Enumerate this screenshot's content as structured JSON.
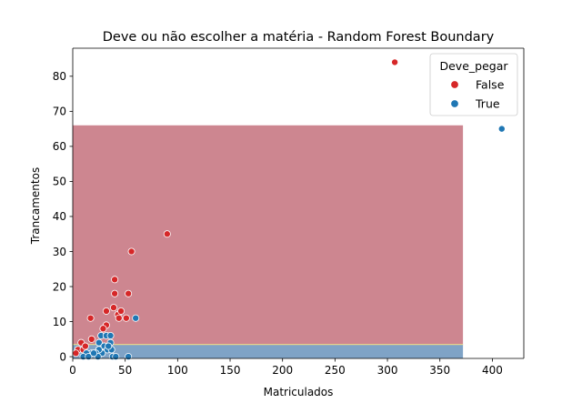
{
  "chart_data": {
    "type": "scatter",
    "title": "Deve ou não escolher a matéria - Random Forest Boundary",
    "xlabel": "Matriculados",
    "ylabel": "Trancamentos",
    "xlim": [
      0,
      430
    ],
    "ylim": [
      -0.5,
      88
    ],
    "xticks": [
      0,
      50,
      100,
      150,
      200,
      250,
      300,
      350,
      400
    ],
    "yticks": [
      0,
      10,
      20,
      30,
      40,
      50,
      60,
      70,
      80
    ],
    "grid": false,
    "legend": {
      "title": "Deve_pegar",
      "placement": "top-right",
      "entries": [
        {
          "label": "False",
          "color": "#d62728"
        },
        {
          "label": "True",
          "color": "#1f77b4"
        }
      ]
    },
    "decision_regions": [
      {
        "class": "True",
        "x_range": [
          0,
          372
        ],
        "y_range": [
          -0.5,
          3.5
        ],
        "color": "#7fa3c6"
      },
      {
        "class": "False",
        "x_range": [
          0,
          372
        ],
        "y_range": [
          3.5,
          66
        ],
        "color": "#cd8690"
      }
    ],
    "boundary_line": {
      "y": 3.5,
      "x_range": [
        0,
        372
      ],
      "color": "#e8d08a"
    },
    "series": [
      {
        "name": "False",
        "color": "#d62728",
        "points": [
          [
            307,
            84
          ],
          [
            90,
            35
          ],
          [
            56,
            30
          ],
          [
            40,
            22
          ],
          [
            40,
            18
          ],
          [
            53,
            18
          ],
          [
            39,
            14
          ],
          [
            17,
            11
          ],
          [
            43,
            12
          ],
          [
            44,
            11
          ],
          [
            46,
            13
          ],
          [
            51,
            11
          ],
          [
            32,
            13
          ],
          [
            32,
            9
          ],
          [
            29,
            8
          ],
          [
            18,
            5
          ],
          [
            8,
            4
          ],
          [
            5,
            2
          ],
          [
            3,
            1
          ],
          [
            10,
            2
          ],
          [
            12,
            3
          ],
          [
            25,
            2
          ]
        ]
      },
      {
        "name": "True",
        "color": "#1f77b4",
        "points": [
          [
            409,
            65
          ],
          [
            60,
            11
          ],
          [
            27,
            6
          ],
          [
            32,
            6
          ],
          [
            36,
            6
          ],
          [
            36,
            4
          ],
          [
            25,
            4
          ],
          [
            30,
            3
          ],
          [
            33,
            2
          ],
          [
            37,
            2
          ],
          [
            28,
            1
          ],
          [
            25,
            2
          ],
          [
            22,
            1
          ],
          [
            18,
            1
          ],
          [
            13,
            1
          ],
          [
            10,
            0
          ],
          [
            15,
            0
          ],
          [
            24,
            0
          ],
          [
            38,
            0
          ],
          [
            41,
            0
          ],
          [
            53,
            0
          ],
          [
            20,
            1
          ],
          [
            34,
            3
          ]
        ]
      }
    ]
  }
}
